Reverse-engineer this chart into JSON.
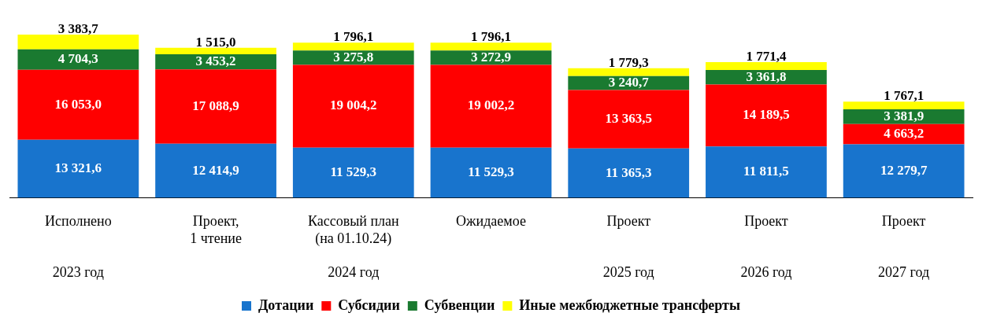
{
  "chart_data": {
    "type": "bar",
    "stacked": true,
    "legend": "bottom",
    "tick_labels": "x",
    "categories": [
      "Исполнено\n\n\n2023 год",
      "Проект,\n1 чтение",
      "Кассовый план\n(на 01.10.24)\n\n2024 год",
      "Ожидаемое",
      "Проект\n\n\n2025 год",
      "Проект\n\n\n2026 год",
      "Проект\n\n\n2027 год"
    ],
    "series": [
      {
        "name": "Дотации",
        "color": "#1874cd",
        "values": [
          13321.6,
          12414.9,
          11529.3,
          11529.3,
          11365.3,
          11811.5,
          12279.7
        ],
        "value_labels": [
          "13 321,6",
          "12 414,9",
          "11 529,3",
          "11 529,3",
          "11 365,3",
          "11 811,5",
          "12 279,7"
        ]
      },
      {
        "name": "Субсидии",
        "color": "#ff0000",
        "values": [
          16053.0,
          17088.9,
          19004.2,
          19002.2,
          13363.5,
          14189.5,
          4663.2
        ],
        "value_labels": [
          "16 053,0",
          "17 088,9",
          "19 004,2",
          "19 002,2",
          "13 363,5",
          "14 189,5",
          "4 663,2"
        ]
      },
      {
        "name": "Субвенции",
        "color": "#1a7a30",
        "values": [
          4704.3,
          3453.2,
          3275.8,
          3272.9,
          3240.7,
          3361.8,
          3381.9
        ],
        "value_labels": [
          "4 704,3",
          "3 453,2",
          "3 275,8",
          "3 272,9",
          "3 240,7",
          "3 361,8",
          "3 381,9"
        ]
      },
      {
        "name": "Иные межбюджетные трансферты",
        "color": "#ffff00",
        "values": [
          3383.7,
          1515.0,
          1796.1,
          1796.1,
          1779.3,
          1771.4,
          1767.1
        ],
        "value_labels": [
          "3 383,7",
          "1 515,0",
          "1 796,1",
          "1 796,1",
          "1 779,3",
          "1 771,4",
          "1 767,1"
        ]
      }
    ]
  }
}
